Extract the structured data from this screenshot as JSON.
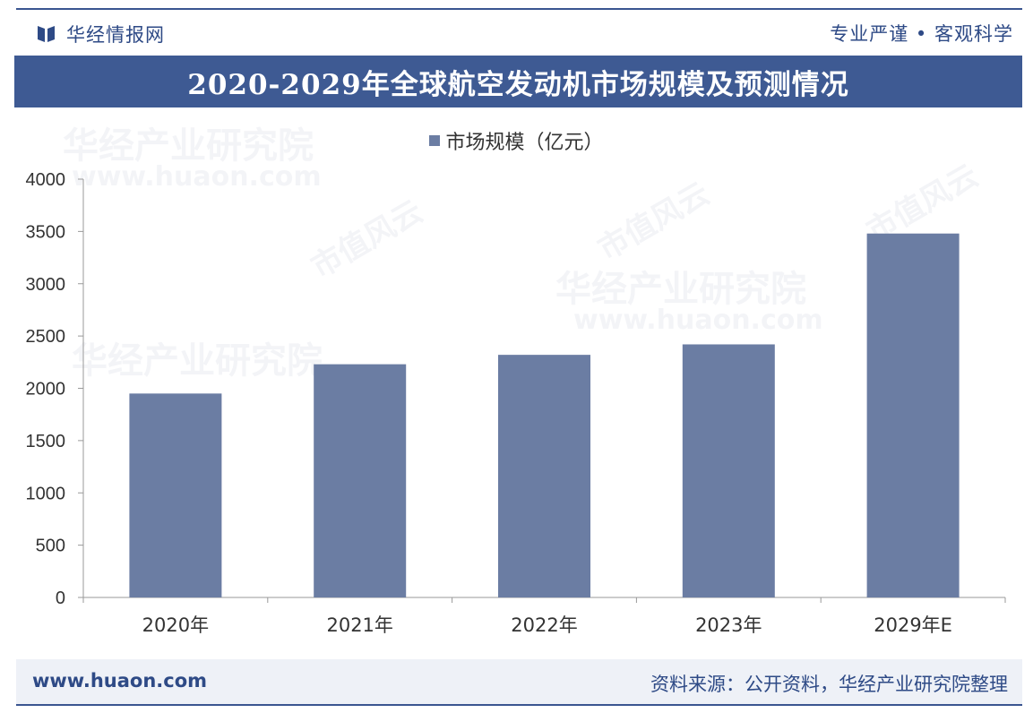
{
  "brand": {
    "name": "华经情报网",
    "icon": "book-icon"
  },
  "slogan": "专业严谨 • 客观科学",
  "title": "2020-2029年全球航空发动机市场规模及预测情况",
  "chart_data": {
    "type": "bar",
    "title": "2020-2029年全球航空发动机市场规模及预测情况",
    "categories": [
      "2020年",
      "2021年",
      "2022年",
      "2023年",
      "2029年E"
    ],
    "series": [
      {
        "name": "市场规模（亿元）",
        "values": [
          1950,
          2230,
          2320,
          2420,
          3480
        ]
      }
    ],
    "ylim": [
      0,
      4000
    ],
    "yticks": [
      0,
      500,
      1000,
      1500,
      2000,
      2500,
      3000,
      3500,
      4000
    ],
    "grid": false,
    "legend": "top-center",
    "xlabel": "",
    "ylabel": "",
    "bar_color": "#6b7da3"
  },
  "footer": {
    "site": "www.huaon.com",
    "source": "资料来源：公开资料，华经产业研究院整理"
  },
  "watermarks": {
    "org": "华经产业研究院",
    "url": "www.huaon.com",
    "tag": "市值风云"
  },
  "colors": {
    "primary": "#3e5a93",
    "bar": "#6b7da3"
  }
}
